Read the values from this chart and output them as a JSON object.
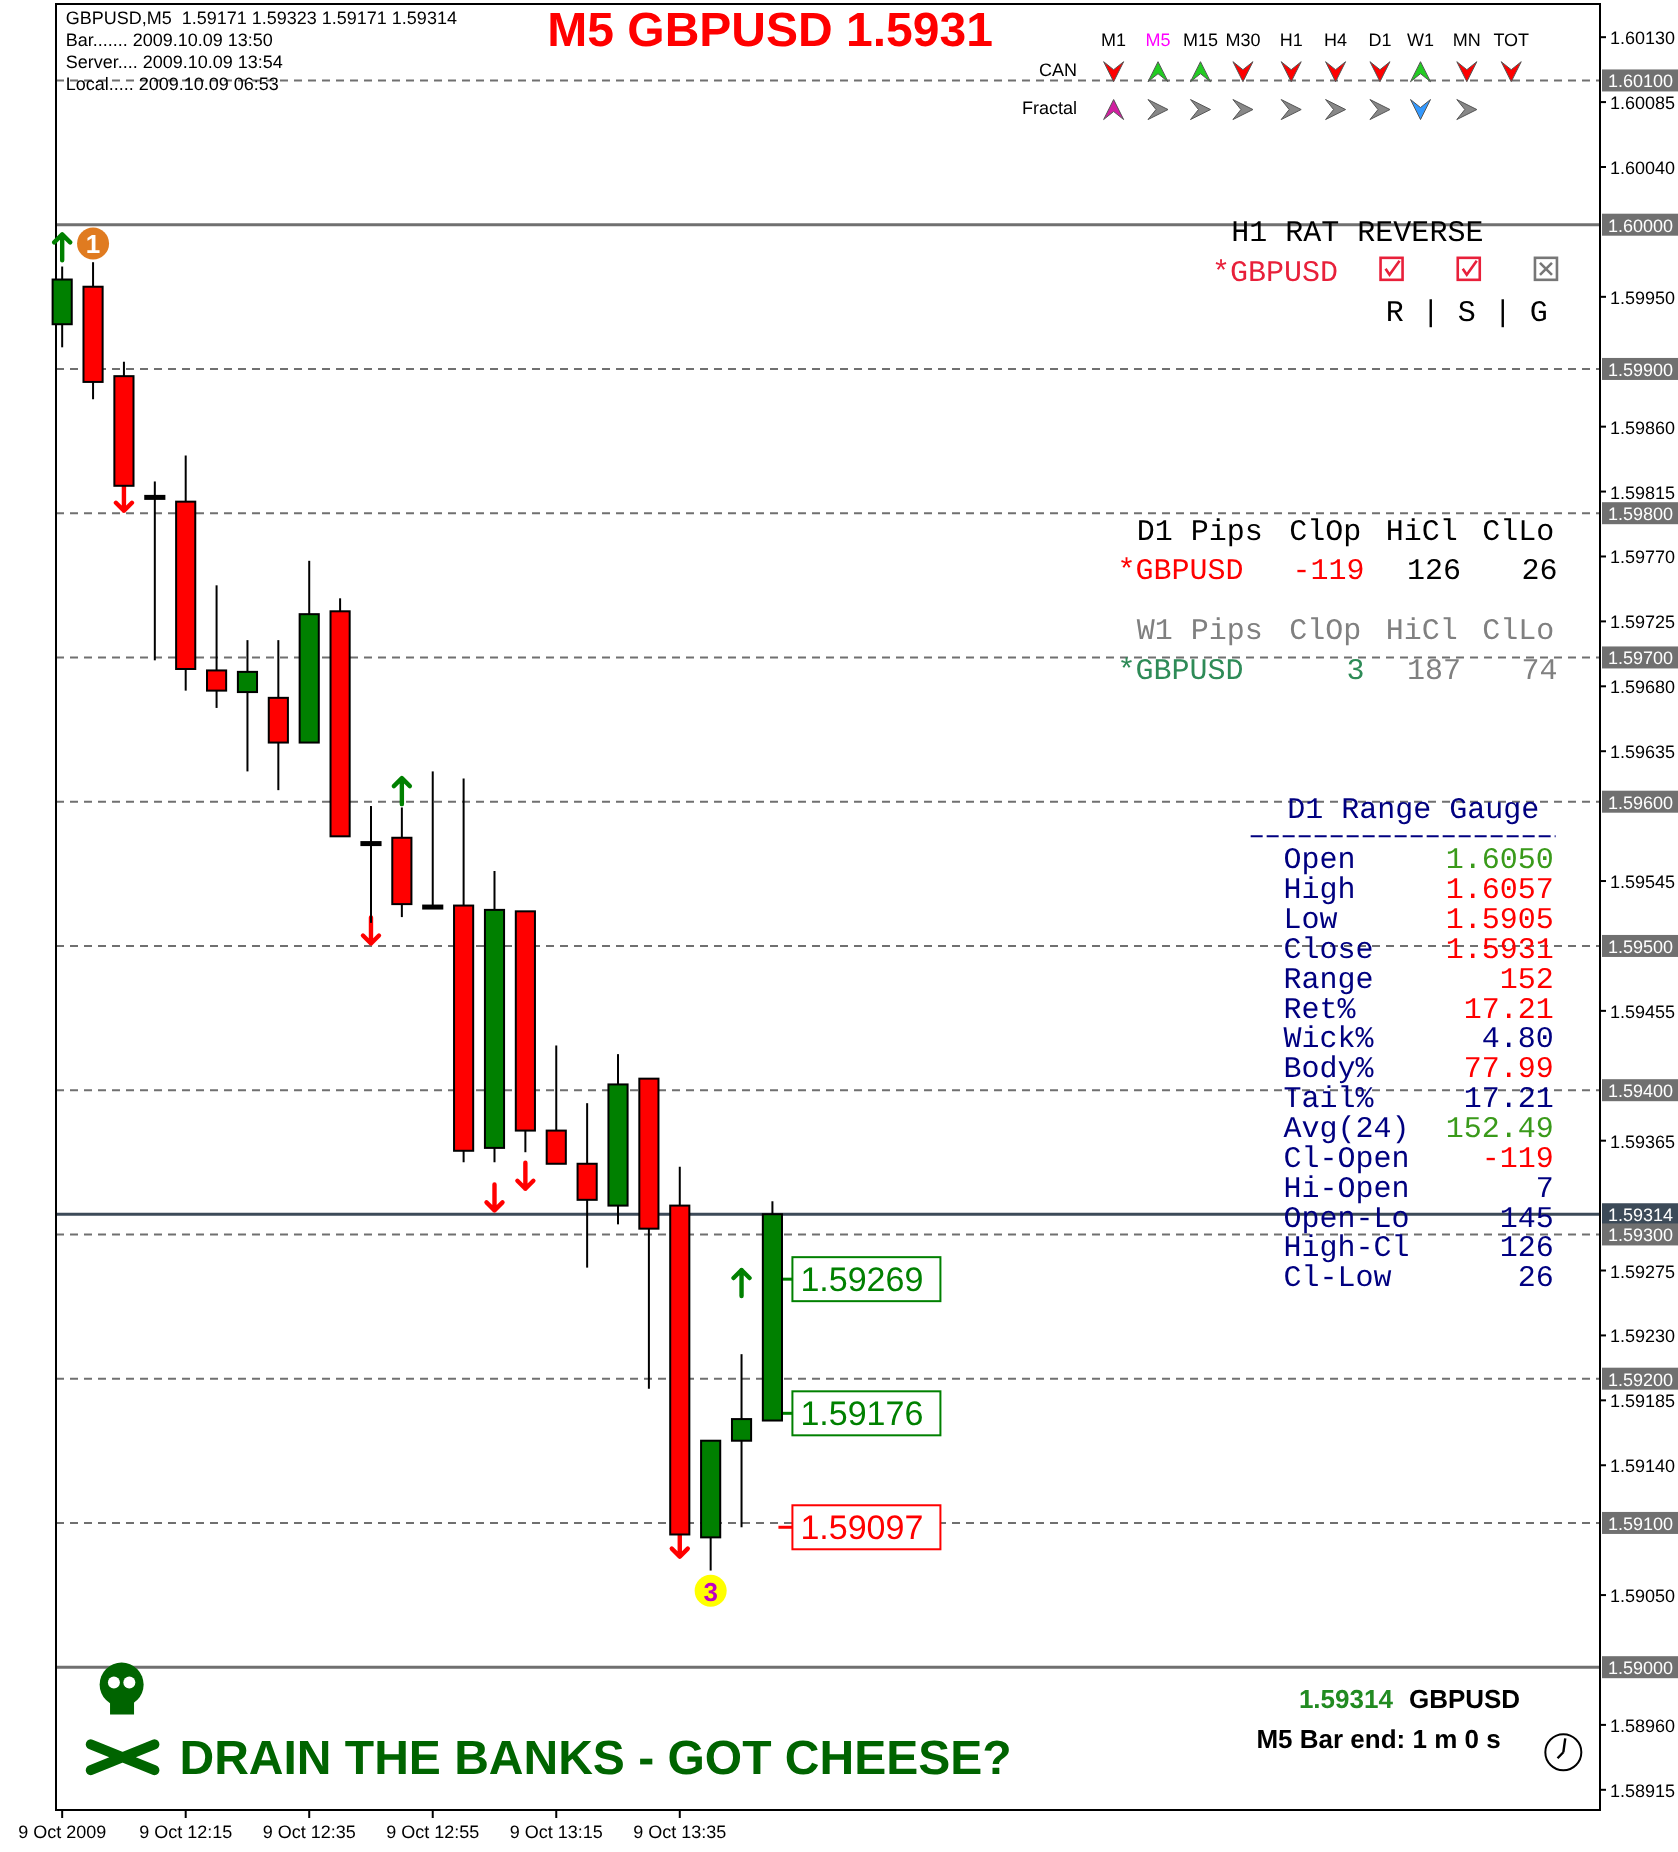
{
  "chart_data": {
    "type": "candlestick",
    "title": "M5 GBPUSD 1.5931",
    "x": [
      "2009-10-09T11:55",
      "2009-10-09T12:00",
      "2009-10-09T12:05",
      "2009-10-09T12:10",
      "2009-10-09T12:15",
      "2009-10-09T12:20",
      "2009-10-09T12:25",
      "2009-10-09T12:30",
      "2009-10-09T12:35",
      "2009-10-09T12:40",
      "2009-10-09T12:45",
      "2009-10-09T12:50",
      "2009-10-09T12:55",
      "2009-10-09T13:00",
      "2009-10-09T13:05",
      "2009-10-09T13:10",
      "2009-10-09T13:15",
      "2009-10-09T13:20",
      "2009-10-09T13:25",
      "2009-10-09T13:30",
      "2009-10-09T13:35",
      "2009-10-09T13:40",
      "2009-10-09T13:45",
      "2009-10-09T13:50"
    ],
    "ohlc": [
      [
        1.59931,
        1.59971,
        1.59915,
        1.59962
      ],
      [
        1.59957,
        1.59974,
        1.59879,
        1.59891
      ],
      [
        1.59895,
        1.59905,
        1.59819,
        1.59819
      ],
      [
        1.59812,
        1.59822,
        1.59698,
        1.59811
      ],
      [
        1.59808,
        1.5984,
        1.59677,
        1.59692
      ],
      [
        1.59691,
        1.5975,
        1.59665,
        1.59677
      ],
      [
        1.59676,
        1.59712,
        1.59621,
        1.5969
      ],
      [
        1.59672,
        1.59712,
        1.59608,
        1.59641
      ],
      [
        1.59641,
        1.59767,
        1.59641,
        1.5973
      ],
      [
        1.59732,
        1.59741,
        1.59576,
        1.59576
      ],
      [
        1.59572,
        1.59597,
        1.59516,
        1.59571
      ],
      [
        1.59575,
        1.59596,
        1.5952,
        1.59529
      ],
      [
        1.59528,
        1.59621,
        1.59526,
        1.59527
      ],
      [
        1.59528,
        1.59616,
        1.5935,
        1.59358
      ],
      [
        1.5936,
        1.59552,
        1.5935,
        1.59525
      ],
      [
        1.59524,
        1.59524,
        1.59357,
        1.59372
      ],
      [
        1.59372,
        1.59431,
        1.59349,
        1.59349
      ],
      [
        1.59349,
        1.59391,
        1.59277,
        1.59324
      ],
      [
        1.5932,
        1.59425,
        1.59307,
        1.59404
      ],
      [
        1.59408,
        1.59408,
        1.59193,
        1.59304
      ],
      [
        1.5932,
        1.59347,
        1.59092,
        1.59092
      ],
      [
        1.5909,
        1.59157,
        1.59067,
        1.59157
      ],
      [
        1.59157,
        1.59217,
        1.59097,
        1.59172
      ],
      [
        1.59171,
        1.59323,
        1.59171,
        1.59314
      ]
    ],
    "colors": [
      "#008000",
      "#ff0000",
      "#ff0000",
      "#000000",
      "#ff0000",
      "#ff0000",
      "#008000",
      "#ff0000",
      "#008000",
      "#ff0000",
      "#000000",
      "#ff0000",
      "#000000",
      "#ff0000",
      "#008000",
      "#ff0000",
      "#ff0000",
      "#ff0000",
      "#008000",
      "#ff0000",
      "#ff0000",
      "#008000",
      "#008000",
      "#008000"
    ],
    "series": [
      {
        "type": "scatter",
        "color": "#008000",
        "x": [
          "2009-10-09T11:55",
          "2009-10-09T12:50",
          "2009-10-09T13:45"
        ],
        "values": [
          1.59985,
          1.59608,
          1.59267
        ]
      },
      {
        "type": "scatter",
        "color": "#ff0000",
        "x": [
          "2009-10-09T12:05",
          "2009-10-09T12:45",
          "2009-10-09T13:05",
          "2009-10-09T13:10",
          "2009-10-09T13:35"
        ],
        "values": [
          1.5981,
          1.5951,
          1.59325,
          1.5934,
          1.59085
        ]
      }
    ],
    "xlim": [
      "2009-10-09T11:54",
      "2009-10-09T16:04"
    ],
    "xticks": [
      {
        "value": "2009-10-09T11:55",
        "label": "9 Oct 2009"
      },
      {
        "value": "2009-10-09T12:15",
        "label": "9 Oct 12:15"
      },
      {
        "value": "2009-10-09T12:35",
        "label": "9 Oct 12:35"
      },
      {
        "value": "2009-10-09T12:55",
        "label": "9 Oct 12:55"
      },
      {
        "value": "2009-10-09T13:15",
        "label": "9 Oct 13:15"
      },
      {
        "value": "2009-10-09T13:35",
        "label": "9 Oct 13:35"
      }
    ],
    "ylim": [
      1.58901,
      1.60153
    ],
    "yticks": [
      {
        "value": 1.6013,
        "label": "1.60130"
      },
      {
        "value": 1.60085,
        "label": "1.60085"
      },
      {
        "value": 1.6004,
        "label": "1.60040"
      },
      {
        "value": 1.5995,
        "label": "1.59950"
      },
      {
        "value": 1.5986,
        "label": "1.59860"
      },
      {
        "value": 1.59815,
        "label": "1.59815"
      },
      {
        "value": 1.5977,
        "label": "1.59770"
      },
      {
        "value": 1.59725,
        "label": "1.59725"
      },
      {
        "value": 1.5968,
        "label": "1.59680"
      },
      {
        "value": 1.59635,
        "label": "1.59635"
      },
      {
        "value": 1.59545,
        "label": "1.59545"
      },
      {
        "value": 1.59455,
        "label": "1.59455"
      },
      {
        "value": 1.59365,
        "label": "1.59365"
      },
      {
        "value": 1.59275,
        "label": "1.59275"
      },
      {
        "value": 1.5923,
        "label": "1.59230"
      },
      {
        "value": 1.59185,
        "label": "1.59185"
      },
      {
        "value": 1.5914,
        "label": "1.59140"
      },
      {
        "value": 1.5905,
        "label": "1.59050"
      },
      {
        "value": 1.5896,
        "label": "1.58960"
      },
      {
        "value": 1.58915,
        "label": "1.58915"
      }
    ],
    "ref_lines": [
      {
        "axis": "y",
        "value": 1.601,
        "label": "1.60100",
        "color": "#707070",
        "line_style": "dashed"
      },
      {
        "axis": "y",
        "value": 1.6,
        "label": "1.60000",
        "color": "#707070",
        "line_style": "solid"
      },
      {
        "axis": "y",
        "value": 1.599,
        "label": "1.59900",
        "color": "#707070",
        "line_style": "dashed"
      },
      {
        "axis": "y",
        "value": 1.598,
        "label": "1.59800",
        "color": "#707070",
        "line_style": "dashed"
      },
      {
        "axis": "y",
        "value": 1.597,
        "label": "1.59700",
        "color": "#707070",
        "line_style": "dashed"
      },
      {
        "axis": "y",
        "value": 1.596,
        "label": "1.59600",
        "color": "#707070",
        "line_style": "dashed"
      },
      {
        "axis": "y",
        "value": 1.595,
        "label": "1.59500",
        "color": "#707070",
        "line_style": "dashed"
      },
      {
        "axis": "y",
        "value": 1.594,
        "label": "1.59400",
        "color": "#707070",
        "line_style": "dashed"
      },
      {
        "axis": "y",
        "value": 1.59314,
        "label": "1.59314",
        "color": "#3c4a58",
        "line_style": "solid"
      },
      {
        "axis": "y",
        "value": 1.593,
        "label": "1.59300",
        "color": "#707070",
        "line_style": "dashed"
      },
      {
        "axis": "y",
        "value": 1.592,
        "label": "1.59200",
        "color": "#707070",
        "line_style": "dashed"
      },
      {
        "axis": "y",
        "value": 1.591,
        "label": "1.59100",
        "color": "#707070",
        "line_style": "dashed"
      },
      {
        "axis": "y",
        "value": 1.59,
        "label": "1.59000",
        "color": "#707070",
        "line_style": "solid"
      }
    ],
    "annotations": [
      "GBPUSD,M5  1.59171 1.59323 1.59171 1.59314",
      "Bar....... 2009.10.09 13:50",
      "Server.... 2009.10.09 13:54",
      "Local..... 2009.10.09 06:53",
      "M1",
      "M5",
      "M15",
      "M30",
      "H1",
      "H4",
      "D1",
      "W1",
      "MN",
      "TOT",
      "CAN",
      "Fractal",
      "H1 RAT REVERSE",
      "*GBPUSD",
      "R | S | G",
      "D1 Pips",
      "ClOp",
      "HiCl",
      "ClLo",
      "*GBPUSD",
      "-119",
      "126",
      "26",
      "W1 Pips",
      "ClOp",
      "HiCl",
      "ClLo",
      "*GBPUSD",
      "3",
      "187",
      "74",
      "D1 Range Gauge",
      "Open",
      "1.6050",
      "High",
      "1.6057",
      "Low",
      "1.5905",
      "Close",
      "1.5931",
      "Range",
      "152",
      "Ret%",
      "17.21",
      "Wick%",
      "4.80",
      "Body%",
      "77.99",
      "Tail%",
      "17.21",
      "Avg(24)",
      "152.49",
      "Cl-Open",
      "-119",
      "Hi-Open",
      "7",
      "Open-Lo",
      "145",
      "High-Cl",
      "126",
      "Cl-Low",
      "26",
      "DRAIN THE BANKS - GOT CHEESE?",
      "1.59314",
      "GBPUSD",
      "M5 Bar end: 1 m 0 s",
      {
        "text": "1.59269",
        "x": "2009-10-09T13:50",
        "y": 1.59269
      },
      {
        "text": "1.59176",
        "x": "2009-10-09T13:50",
        "y": 1.59176
      },
      {
        "text": "1.59097",
        "x": "2009-10-09T13:50",
        "y": 1.59097
      },
      {
        "text": "1",
        "x": "2009-10-09T12:00",
        "y": 1.59987
      },
      {
        "text": "3",
        "x": "2009-10-09T13:40",
        "y": 1.59053
      }
    ]
  }
}
